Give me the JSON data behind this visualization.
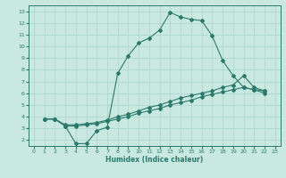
{
  "xlabel": "Humidex (Indice chaleur)",
  "bg_color": "#c8e8e0",
  "grid_color": "#b0d8d0",
  "line_color": "#2a7a6a",
  "xlim": [
    -0.5,
    23.5
  ],
  "ylim": [
    1.5,
    13.5
  ],
  "xticks": [
    0,
    1,
    2,
    3,
    4,
    5,
    6,
    7,
    8,
    9,
    10,
    11,
    12,
    13,
    14,
    15,
    16,
    17,
    18,
    19,
    20,
    21,
    22,
    23
  ],
  "yticks": [
    2,
    3,
    4,
    5,
    6,
    7,
    8,
    9,
    10,
    11,
    12,
    13
  ],
  "line1_x": [
    1,
    2,
    3,
    4,
    5,
    6,
    7,
    8,
    9,
    10,
    11,
    12,
    13,
    14,
    15,
    16,
    17,
    18,
    19,
    20,
    21,
    22
  ],
  "line1_y": [
    3.8,
    3.8,
    3.2,
    1.7,
    1.7,
    2.8,
    3.1,
    7.7,
    9.2,
    10.3,
    10.7,
    11.4,
    12.9,
    12.5,
    12.3,
    12.2,
    10.9,
    8.8,
    7.5,
    6.5,
    6.3,
    6.2
  ],
  "line2_x": [
    1,
    2,
    3,
    4,
    5,
    6,
    7,
    8,
    9,
    10,
    11,
    12,
    13,
    14,
    15,
    16,
    17,
    18,
    19,
    20,
    21,
    22
  ],
  "line2_y": [
    3.8,
    3.8,
    3.3,
    3.3,
    3.4,
    3.5,
    3.7,
    4.0,
    4.2,
    4.5,
    4.8,
    5.0,
    5.3,
    5.6,
    5.8,
    6.0,
    6.2,
    6.5,
    6.7,
    7.5,
    6.5,
    6.2
  ],
  "line3_x": [
    1,
    2,
    3,
    4,
    5,
    6,
    7,
    8,
    9,
    10,
    11,
    12,
    13,
    14,
    15,
    16,
    17,
    18,
    19,
    20,
    21,
    22
  ],
  "line3_y": [
    3.8,
    3.8,
    3.2,
    3.2,
    3.3,
    3.4,
    3.6,
    3.8,
    4.0,
    4.3,
    4.5,
    4.7,
    5.0,
    5.2,
    5.4,
    5.7,
    5.9,
    6.1,
    6.3,
    6.5,
    6.3,
    6.0
  ]
}
